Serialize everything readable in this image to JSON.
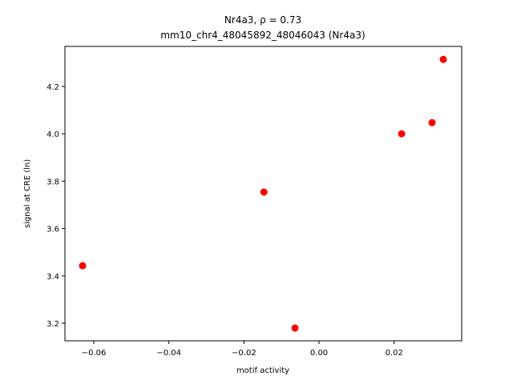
{
  "chart_data": {
    "type": "scatter",
    "title": "Nr4a3, ρ = 0.73",
    "subtitle": "mm10_chr4_48045892_48046043 (Nr4a3)",
    "x_label": "motif activity",
    "y_label": "signal at CRE (ln)",
    "x": [
      -0.063,
      -0.0147,
      -0.0064,
      0.022,
      0.0301,
      0.0331
    ],
    "y": [
      3.443,
      3.754,
      3.18,
      4.0,
      4.047,
      4.314
    ],
    "color": "#ff0000",
    "xlim": [
      -0.0677,
      0.038
    ],
    "ylim": [
      3.126,
      4.369
    ],
    "xticks": [
      {
        "value": -0.06,
        "label": "−0.06"
      },
      {
        "value": -0.04,
        "label": "−0.04"
      },
      {
        "value": -0.02,
        "label": "−0.02"
      },
      {
        "value": 0,
        "label": "0.00"
      },
      0.02
    ],
    "yticks": [
      3.2,
      3.4,
      3.6,
      3.8,
      {
        "value": 4.0,
        "label": "4.0"
      },
      4.2
    ],
    "grid": false
  }
}
